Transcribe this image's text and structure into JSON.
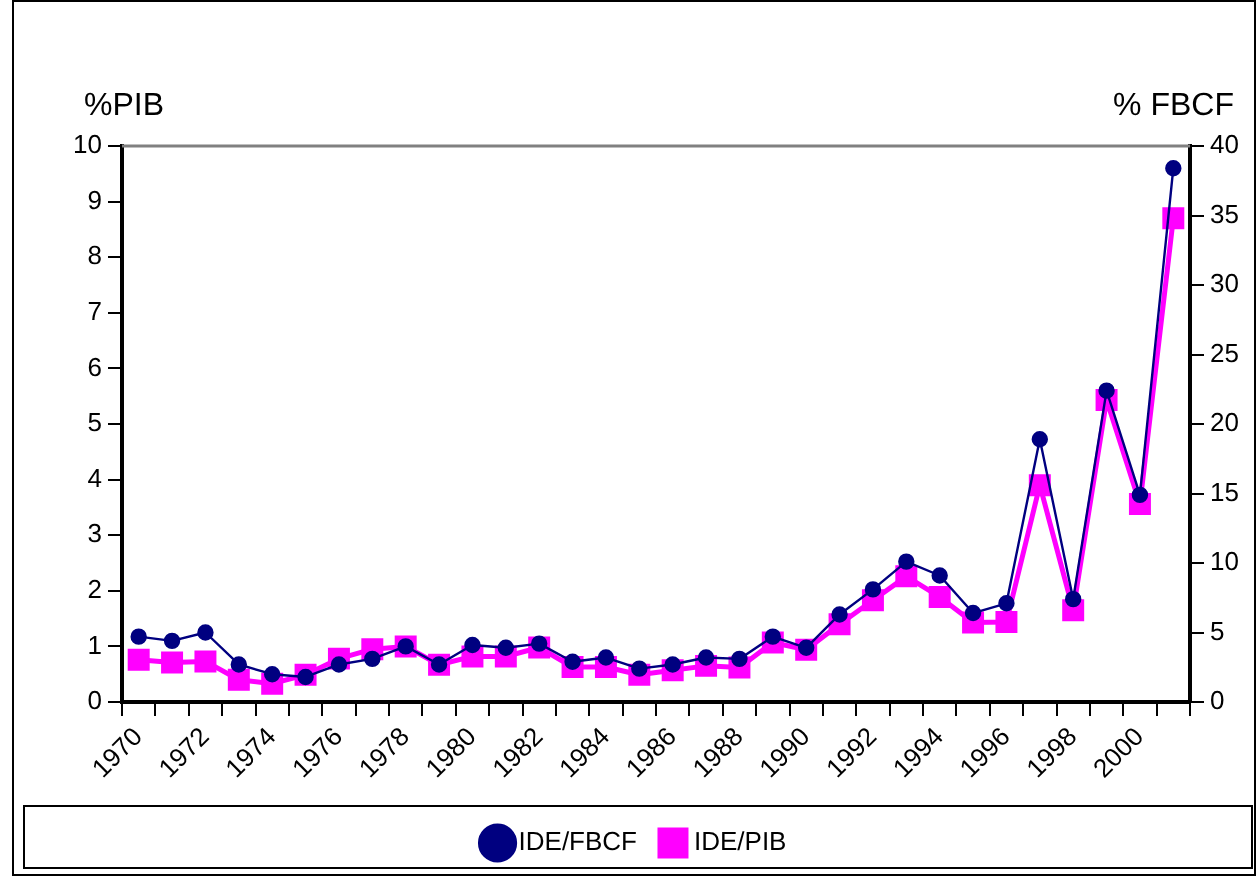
{
  "chart_data": {
    "type": "line",
    "ylabel": "%PIB",
    "y2label": "% FBCF",
    "categories": [
      "1970",
      null,
      "1972",
      null,
      "1974",
      null,
      "1976",
      null,
      "1978",
      null,
      "1980",
      null,
      "1982",
      null,
      "1984",
      null,
      "1986",
      null,
      "1988",
      null,
      "1990",
      null,
      "1992",
      null,
      "1994",
      null,
      "1996",
      null,
      "1998",
      null,
      "2000",
      null
    ],
    "series": [
      {
        "name": "IDE/PIB",
        "color": "#ff00ff",
        "marker": "square",
        "values": [
          0.76,
          0.71,
          0.73,
          0.4,
          0.33,
          0.49,
          0.78,
          0.95,
          1.0,
          0.67,
          0.82,
          0.82,
          0.98,
          0.63,
          0.63,
          0.49,
          0.57,
          0.65,
          0.62,
          1.07,
          0.94,
          1.4,
          1.83,
          2.26,
          1.89,
          1.43,
          1.44,
          3.9,
          1.65,
          5.43,
          3.56,
          8.7
        ]
      },
      {
        "name": "IDE/FBCF",
        "color": "#000080",
        "marker": "circle",
        "axis": "y2",
        "values": [
          4.7,
          4.4,
          5.0,
          2.7,
          2.0,
          1.8,
          2.7,
          3.1,
          4.0,
          2.7,
          4.1,
          3.9,
          4.2,
          2.9,
          3.2,
          2.4,
          2.7,
          3.2,
          3.1,
          4.7,
          3.9,
          6.3,
          8.1,
          10.1,
          9.1,
          6.4,
          7.1,
          18.9,
          7.4,
          22.4,
          14.9,
          38.4
        ]
      }
    ],
    "ylim": [
      0,
      10
    ],
    "yticks": [
      0,
      1,
      2,
      3,
      4,
      5,
      6,
      7,
      8,
      9,
      10
    ],
    "y2lim": [
      0,
      40
    ],
    "y2ticks": [
      0,
      5,
      10,
      15,
      20,
      25,
      30,
      35,
      40
    ],
    "grid": false,
    "legend": "bottom",
    "line_style": "solid"
  }
}
